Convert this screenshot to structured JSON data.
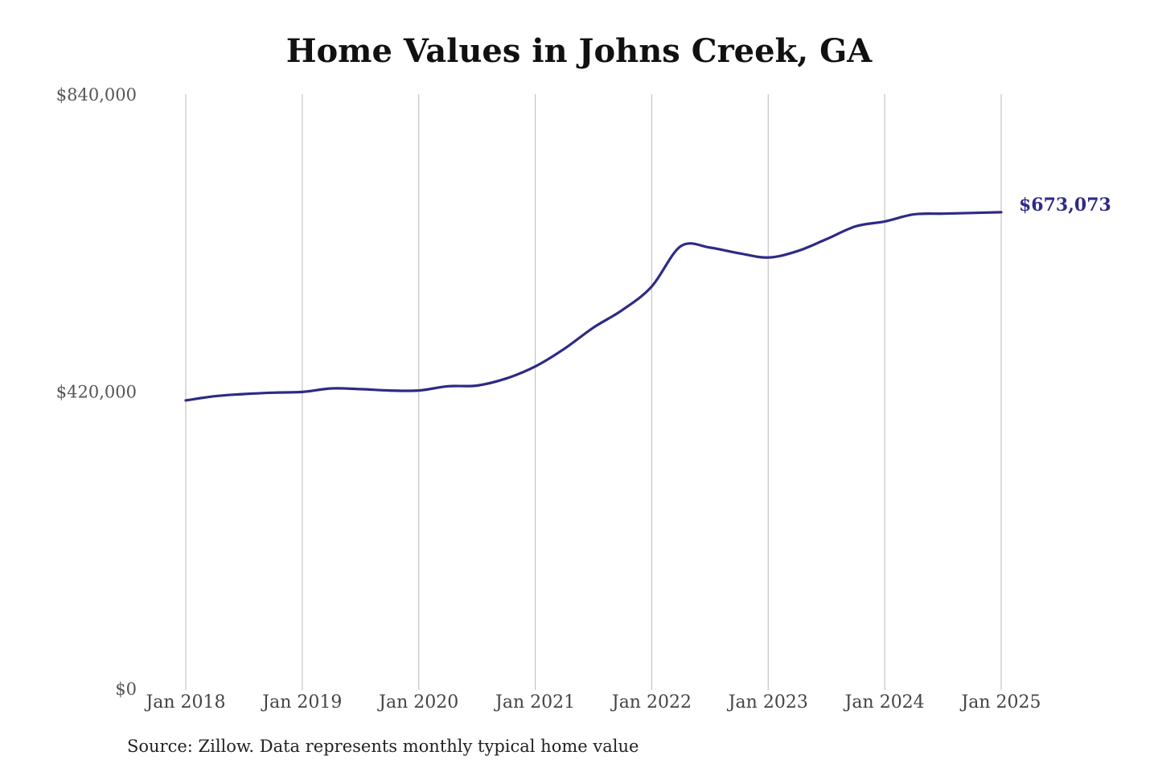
{
  "chart_data": {
    "type": "line",
    "title": "Home Values in Johns Creek, GA",
    "source": "Source: Zillow. Data represents monthly typical home value",
    "xlabel": "",
    "ylabel": "",
    "ylim": [
      0,
      840000
    ],
    "y_ticks": [
      {
        "value": 0,
        "label": "$0"
      },
      {
        "value": 420000,
        "label": "$420,000"
      },
      {
        "value": 840000,
        "label": "$840,000"
      }
    ],
    "x_ticks": [
      {
        "value": 2018.0,
        "label": "Jan 2018"
      },
      {
        "value": 2019.0,
        "label": "Jan 2019"
      },
      {
        "value": 2020.0,
        "label": "Jan 2020"
      },
      {
        "value": 2021.0,
        "label": "Jan 2021"
      },
      {
        "value": 2022.0,
        "label": "Jan 2022"
      },
      {
        "value": 2023.0,
        "label": "Jan 2023"
      },
      {
        "value": 2024.0,
        "label": "Jan 2024"
      },
      {
        "value": 2025.0,
        "label": "Jan 2025"
      }
    ],
    "vertical_grid": true,
    "line_color": "#2e2a85",
    "end_label": "$673,073",
    "series": [
      {
        "name": "",
        "points": [
          [
            2018.0,
            407000
          ],
          [
            2018.25,
            413000
          ],
          [
            2018.5,
            416000
          ],
          [
            2018.75,
            418000
          ],
          [
            2019.0,
            419000
          ],
          [
            2019.25,
            424000
          ],
          [
            2019.5,
            423000
          ],
          [
            2019.75,
            421000
          ],
          [
            2020.0,
            421000
          ],
          [
            2020.25,
            427000
          ],
          [
            2020.5,
            428000
          ],
          [
            2020.75,
            438000
          ],
          [
            2021.0,
            455000
          ],
          [
            2021.25,
            480000
          ],
          [
            2021.5,
            510000
          ],
          [
            2021.75,
            535000
          ],
          [
            2022.0,
            568000
          ],
          [
            2022.25,
            625000
          ],
          [
            2022.5,
            623000
          ],
          [
            2022.75,
            615000
          ],
          [
            2023.0,
            609000
          ],
          [
            2023.25,
            618000
          ],
          [
            2023.5,
            635000
          ],
          [
            2023.75,
            653000
          ],
          [
            2024.0,
            660000
          ],
          [
            2024.25,
            670000
          ],
          [
            2024.5,
            671000
          ],
          [
            2024.75,
            672000
          ],
          [
            2025.0,
            673073
          ]
        ]
      }
    ]
  }
}
